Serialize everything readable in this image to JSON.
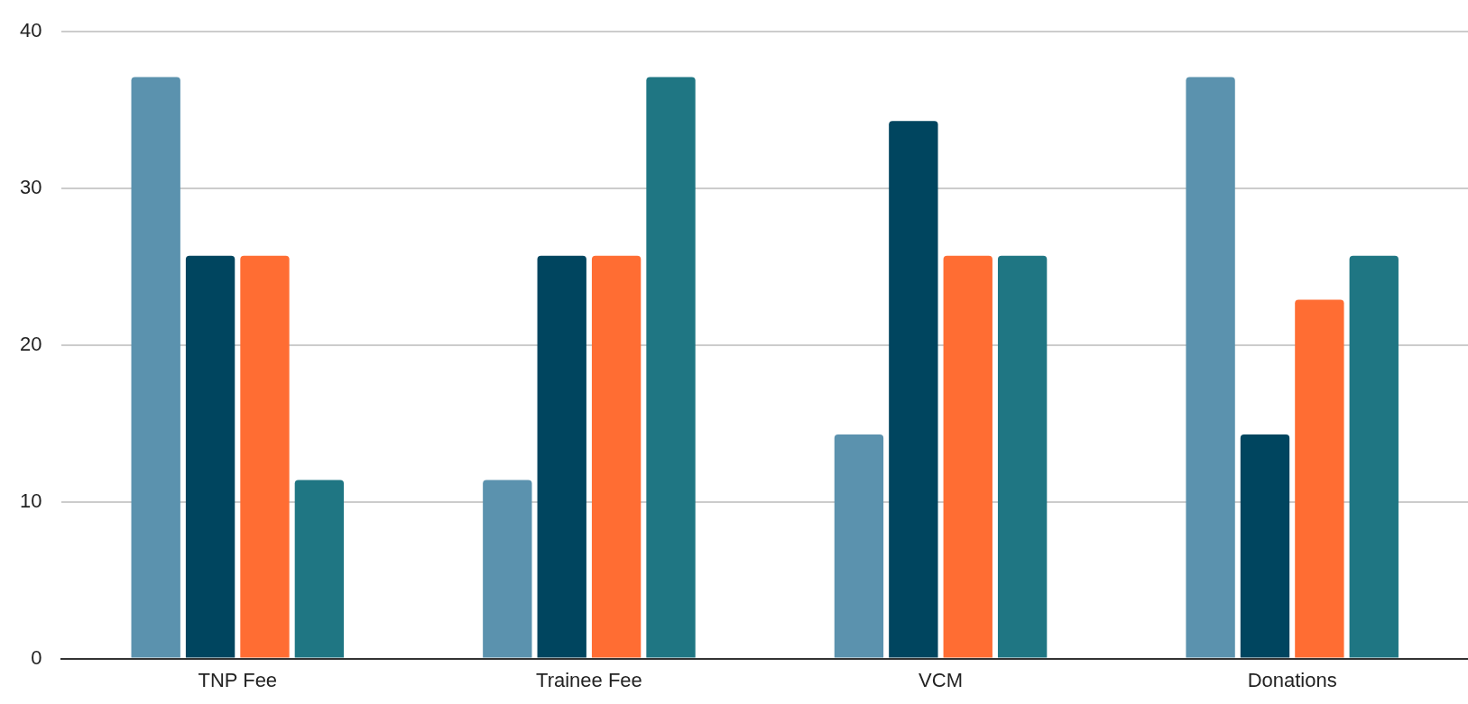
{
  "chart_data": {
    "type": "bar",
    "categories": [
      "TNP Fee",
      "Trainee Fee",
      "VCM",
      "Donations"
    ],
    "series": [
      {
        "color": "#5b92ae",
        "values": [
          37.1,
          11.4,
          14.3,
          37.1
        ]
      },
      {
        "color": "#00455f",
        "values": [
          25.7,
          25.7,
          34.3,
          14.3
        ]
      },
      {
        "color": "#ff6d33",
        "values": [
          25.7,
          25.7,
          25.7,
          22.9
        ]
      },
      {
        "color": "#1f7683",
        "values": [
          11.4,
          37.1,
          25.7,
          25.7
        ]
      }
    ],
    "ylim": [
      0,
      40
    ],
    "yticks": [
      0,
      10,
      20,
      30,
      40
    ],
    "grid": "y",
    "legend": false
  }
}
